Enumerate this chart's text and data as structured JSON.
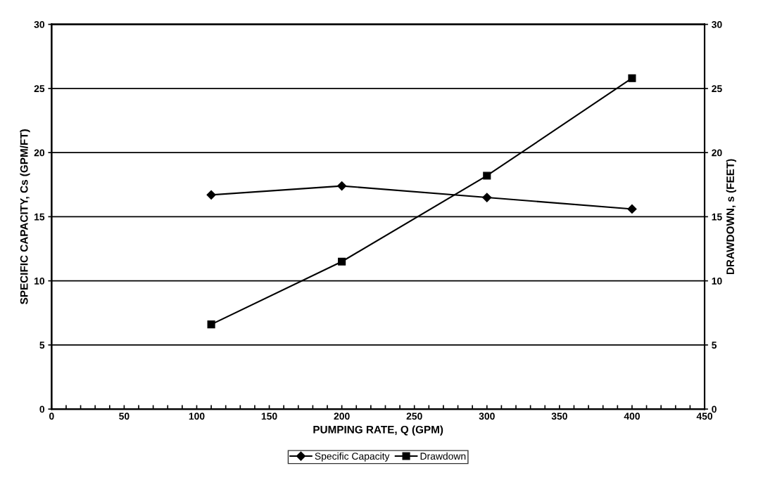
{
  "chart_data": {
    "type": "line",
    "xlabel": "PUMPING RATE, Q (GPM)",
    "ylabel": "SPECIFIC CAPACITY, Cs (GPM/FT)",
    "y2label": "DRAWDOWN, s (FEET)",
    "x": [
      110,
      200,
      300,
      400
    ],
    "series": [
      {
        "name": "Specific Capacity",
        "color": "#000000",
        "marker": "diamond",
        "values": [
          16.7,
          17.4,
          16.5,
          15.6
        ]
      },
      {
        "name": "Drawdown",
        "color": "#000000",
        "marker": "square",
        "axis": "y2",
        "values": [
          6.6,
          11.5,
          18.2,
          25.8
        ]
      }
    ],
    "xlim": [
      0,
      450
    ],
    "xticks": [
      0,
      {
        "value": 10,
        "label": null
      },
      {
        "value": 20,
        "label": null
      },
      {
        "value": 30,
        "label": null
      },
      {
        "value": 40,
        "label": null
      },
      50,
      {
        "value": 60,
        "label": null
      },
      {
        "value": 70,
        "label": null
      },
      {
        "value": 80,
        "label": null
      },
      {
        "value": 90,
        "label": null
      },
      100,
      {
        "value": 110,
        "label": null
      },
      {
        "value": 120,
        "label": null
      },
      {
        "value": 130,
        "label": null
      },
      {
        "value": 140,
        "label": null
      },
      150,
      {
        "value": 160,
        "label": null
      },
      {
        "value": 170,
        "label": null
      },
      {
        "value": 180,
        "label": null
      },
      {
        "value": 190,
        "label": null
      },
      200,
      {
        "value": 210,
        "label": null
      },
      {
        "value": 220,
        "label": null
      },
      {
        "value": 230,
        "label": null
      },
      {
        "value": 240,
        "label": null
      },
      250,
      {
        "value": 260,
        "label": null
      },
      {
        "value": 270,
        "label": null
      },
      {
        "value": 280,
        "label": null
      },
      {
        "value": 290,
        "label": null
      },
      300,
      {
        "value": 310,
        "label": null
      },
      {
        "value": 320,
        "label": null
      },
      {
        "value": 330,
        "label": null
      },
      {
        "value": 340,
        "label": null
      },
      350,
      {
        "value": 360,
        "label": null
      },
      {
        "value": 370,
        "label": null
      },
      {
        "value": 380,
        "label": null
      },
      {
        "value": 390,
        "label": null
      },
      400,
      {
        "value": 410,
        "label": null
      },
      {
        "value": 420,
        "label": null
      },
      {
        "value": 430,
        "label": null
      },
      {
        "value": 440,
        "label": null
      },
      450
    ],
    "ylim": [
      0,
      30
    ],
    "yticks": [
      0,
      5,
      10,
      15,
      20,
      25,
      30
    ],
    "y2lim": [
      0,
      30
    ],
    "y2ticks": [
      0,
      5,
      10,
      15,
      20,
      25,
      30
    ],
    "grid": "y",
    "legend": "bottom",
    "line_style": "solid"
  }
}
